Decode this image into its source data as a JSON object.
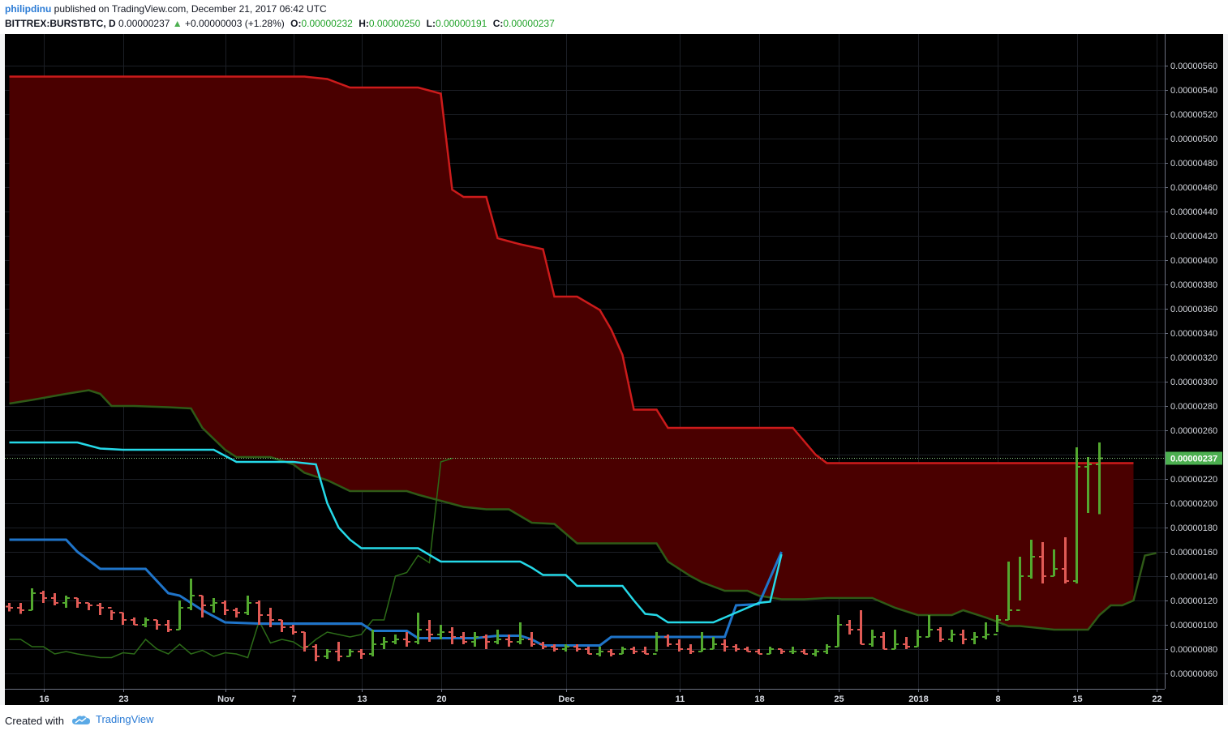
{
  "header": {
    "author": "philipdinu",
    "published": "published on TradingView.com, December 21, 2017 06:42 UTC",
    "symbol": "BITTREX:BURSTBTC, D",
    "last": "0.00000237",
    "change_arrow": "▲",
    "change": "+0.00000003 (+1.28%)",
    "o_label": "O:",
    "o_value": "0.00000232",
    "h_label": "H:",
    "h_value": "0.00000250",
    "l_label": "L:",
    "l_value": "0.00000191",
    "c_label": "C:",
    "c_value": "0.00000237"
  },
  "footer": {
    "created_with": "Created with",
    "brand": "TradingView"
  },
  "colors": {
    "background": "#000000",
    "cloud_bear": "#4a0000",
    "span_a": "#cc1b1b",
    "span_b": "#2f5a17",
    "tenkan": "#25d9e8",
    "kijun": "#1f74c9",
    "chikou": "#2c6b18",
    "bar_up": "#53a82f",
    "bar_down": "#e05a55",
    "price_label_bg": "#4caf50"
  },
  "chart_data": {
    "type": "ohlc",
    "title": "BITTREX:BURSTBTC, D",
    "indicator": "Ichimoku Cloud",
    "x_start": "2017-10-13",
    "x_end": "2017-12-21",
    "x_ticks": [
      {
        "date": "2017-10-16",
        "label": "16"
      },
      {
        "date": "2017-10-23",
        "label": "23"
      },
      {
        "date": "2017-11-01",
        "label": "Nov"
      },
      {
        "date": "2017-11-07",
        "label": "7"
      },
      {
        "date": "2017-11-13",
        "label": "13"
      },
      {
        "date": "2017-11-20",
        "label": "20"
      },
      {
        "date": "2017-12-01",
        "label": "Dec"
      },
      {
        "date": "2017-12-11",
        "label": "11"
      },
      {
        "date": "2017-12-18",
        "label": "18"
      },
      {
        "date": "2017-12-25",
        "label": "25"
      },
      {
        "date": "2018-01-01",
        "label": "2018"
      },
      {
        "date": "2018-01-08",
        "label": "8"
      },
      {
        "date": "2018-01-15",
        "label": "15"
      },
      {
        "date": "2018-01-22",
        "label": "22"
      }
    ],
    "y_ticks": [
      "0.00000060",
      "0.00000080",
      "0.00000100",
      "0.00000120",
      "0.00000140",
      "0.00000160",
      "0.00000180",
      "0.00000200",
      "0.00000220",
      "0.00000240",
      "0.00000260",
      "0.00000280",
      "0.00000300",
      "0.00000320",
      "0.00000340",
      "0.00000360",
      "0.00000380",
      "0.00000400",
      "0.00000420",
      "0.00000440",
      "0.00000460",
      "0.00000480",
      "0.00000500",
      "0.00000520",
      "0.00000540",
      "0.00000560"
    ],
    "ylim": [
      4e-07,
      5.8e-06
    ],
    "last_price": 2.37e-06,
    "last_price_label": "0.00000237",
    "ohlc": [
      [
        115,
        114,
        118,
        111
      ],
      [
        114,
        112,
        118,
        109
      ],
      [
        112,
        126,
        130,
        112
      ],
      [
        126,
        122,
        128,
        118
      ],
      [
        122,
        118,
        126,
        116
      ],
      [
        118,
        122,
        124,
        114
      ],
      [
        122,
        118,
        122,
        114
      ],
      [
        118,
        116,
        118,
        112
      ],
      [
        116,
        114,
        118,
        108
      ],
      [
        114,
        110,
        112,
        104
      ],
      [
        110,
        104,
        110,
        100
      ],
      [
        104,
        100,
        106,
        100
      ],
      [
        100,
        104,
        106,
        98
      ],
      [
        104,
        100,
        104,
        96
      ],
      [
        100,
        96,
        104,
        94
      ],
      [
        96,
        114,
        120,
        96
      ],
      [
        114,
        124,
        138,
        112
      ],
      [
        124,
        116,
        124,
        106
      ],
      [
        116,
        118,
        122,
        110
      ],
      [
        118,
        112,
        120,
        108
      ],
      [
        112,
        110,
        114,
        106
      ],
      [
        110,
        118,
        124,
        108
      ],
      [
        118,
        108,
        120,
        100
      ],
      [
        108,
        104,
        114,
        98
      ],
      [
        104,
        98,
        104,
        94
      ],
      [
        98,
        94,
        100,
        92
      ],
      [
        94,
        82,
        94,
        78
      ],
      [
        82,
        74,
        84,
        70
      ],
      [
        74,
        78,
        80,
        72
      ],
      [
        78,
        74,
        86,
        70
      ],
      [
        74,
        78,
        80,
        74
      ],
      [
        78,
        76,
        80,
        72
      ],
      [
        76,
        84,
        96,
        74
      ],
      [
        84,
        86,
        90,
        80
      ],
      [
        86,
        88,
        92,
        84
      ],
      [
        88,
        86,
        94,
        82
      ],
      [
        86,
        96,
        110,
        84
      ],
      [
        96,
        92,
        104,
        86
      ],
      [
        92,
        94,
        100,
        88
      ],
      [
        94,
        90,
        98,
        84
      ],
      [
        90,
        86,
        94,
        84
      ],
      [
        86,
        90,
        94,
        82
      ],
      [
        90,
        86,
        92,
        80
      ],
      [
        86,
        88,
        96,
        84
      ],
      [
        88,
        86,
        92,
        82
      ],
      [
        86,
        88,
        102,
        84
      ],
      [
        88,
        84,
        94,
        82
      ],
      [
        84,
        82,
        86,
        80
      ],
      [
        82,
        80,
        84,
        78
      ],
      [
        80,
        82,
        84,
        78
      ],
      [
        82,
        80,
        84,
        78
      ],
      [
        80,
        76,
        82,
        76
      ],
      [
        76,
        78,
        82,
        74
      ],
      [
        78,
        76,
        80,
        74
      ],
      [
        76,
        80,
        82,
        76
      ],
      [
        80,
        78,
        82,
        76
      ],
      [
        78,
        76,
        82,
        76
      ],
      [
        76,
        90,
        94,
        78
      ],
      [
        90,
        84,
        92,
        82
      ],
      [
        84,
        80,
        88,
        78
      ],
      [
        80,
        78,
        84,
        76
      ],
      [
        78,
        80,
        94,
        78
      ],
      [
        80,
        84,
        90,
        80
      ],
      [
        84,
        82,
        88,
        78
      ],
      [
        82,
        80,
        84,
        78
      ],
      [
        80,
        78,
        82,
        78
      ],
      [
        78,
        76,
        80,
        76
      ],
      [
        76,
        80,
        82,
        76
      ],
      [
        80,
        78,
        80,
        76
      ],
      [
        78,
        78,
        82,
        76
      ],
      [
        78,
        76,
        80,
        76
      ],
      [
        76,
        78,
        80,
        74
      ],
      [
        78,
        82,
        84,
        76
      ],
      [
        82,
        100,
        108,
        82
      ],
      [
        100,
        96,
        104,
        92
      ],
      [
        96,
        84,
        112,
        84
      ],
      [
        84,
        90,
        96,
        82
      ],
      [
        90,
        80,
        94,
        80
      ],
      [
        80,
        84,
        96,
        80
      ],
      [
        84,
        82,
        90,
        80
      ],
      [
        82,
        90,
        96,
        82
      ],
      [
        90,
        96,
        108,
        90
      ],
      [
        96,
        88,
        98,
        86
      ],
      [
        88,
        92,
        96,
        86
      ],
      [
        92,
        88,
        96,
        84
      ],
      [
        88,
        90,
        94,
        84
      ],
      [
        90,
        92,
        102,
        88
      ],
      [
        92,
        104,
        108,
        94
      ],
      [
        104,
        112,
        152,
        104
      ],
      [
        112,
        140,
        156,
        120
      ],
      [
        140,
        156,
        170,
        138
      ],
      [
        156,
        140,
        168,
        134
      ],
      [
        140,
        146,
        162,
        140
      ],
      [
        146,
        136,
        172,
        134
      ],
      [
        136,
        230,
        246,
        134
      ],
      [
        230,
        232,
        238,
        192
      ],
      [
        232,
        237,
        250,
        191
      ]
    ],
    "span_a": [
      [
        0,
        551
      ],
      [
        12,
        551
      ],
      [
        20,
        551
      ],
      [
        26,
        551
      ],
      [
        28,
        549
      ],
      [
        30,
        542
      ],
      [
        36,
        542
      ],
      [
        38,
        537
      ],
      [
        39,
        458
      ],
      [
        40,
        452
      ],
      [
        42,
        452
      ],
      [
        43,
        418
      ],
      [
        45,
        413
      ],
      [
        47,
        409
      ],
      [
        48,
        370
      ],
      [
        50,
        370
      ],
      [
        52,
        359
      ],
      [
        53,
        343
      ],
      [
        54,
        322
      ],
      [
        55,
        277
      ],
      [
        57,
        277
      ],
      [
        58,
        262
      ],
      [
        62,
        262
      ],
      [
        66,
        262
      ],
      [
        69,
        262
      ],
      [
        71,
        240
      ],
      [
        72,
        233
      ],
      [
        80,
        233
      ],
      [
        88,
        233
      ],
      [
        93,
        233
      ],
      [
        99,
        233
      ]
    ],
    "span_b": [
      [
        0,
        282
      ],
      [
        2,
        285
      ],
      [
        5,
        290
      ],
      [
        7,
        293
      ],
      [
        8,
        290
      ],
      [
        9,
        280
      ],
      [
        11,
        280
      ],
      [
        14,
        279
      ],
      [
        16,
        278
      ],
      [
        17,
        262
      ],
      [
        19,
        244
      ],
      [
        20,
        238
      ],
      [
        23,
        238
      ],
      [
        25,
        232
      ],
      [
        26,
        225
      ],
      [
        28,
        219
      ],
      [
        30,
        210
      ],
      [
        35,
        210
      ],
      [
        36,
        207
      ],
      [
        38,
        202
      ],
      [
        40,
        197
      ],
      [
        42,
        195
      ],
      [
        44,
        195
      ],
      [
        46,
        184
      ],
      [
        48,
        183
      ],
      [
        50,
        167
      ],
      [
        55,
        167
      ],
      [
        57,
        167
      ],
      [
        58,
        152
      ],
      [
        60,
        140
      ],
      [
        61,
        135
      ],
      [
        63,
        128
      ],
      [
        65,
        128
      ],
      [
        66,
        124
      ],
      [
        68,
        121
      ],
      [
        70,
        121
      ],
      [
        72,
        122
      ],
      [
        76,
        122
      ],
      [
        78,
        114
      ],
      [
        80,
        108
      ],
      [
        83,
        108
      ],
      [
        84,
        112
      ],
      [
        86,
        106
      ],
      [
        88,
        99
      ],
      [
        89,
        99
      ],
      [
        90,
        98
      ],
      [
        92,
        96
      ],
      [
        94,
        96
      ],
      [
        95,
        96
      ],
      [
        96,
        108
      ],
      [
        97,
        116
      ],
      [
        98,
        116
      ],
      [
        99,
        120
      ],
      [
        100,
        157
      ],
      [
        101,
        159
      ]
    ],
    "tenkan": [
      [
        0,
        250
      ],
      [
        6,
        250
      ],
      [
        8,
        245
      ],
      [
        10,
        244
      ],
      [
        14,
        244
      ],
      [
        18,
        244
      ],
      [
        20,
        234
      ],
      [
        25,
        234
      ],
      [
        27,
        232
      ],
      [
        28,
        200
      ],
      [
        29,
        180
      ],
      [
        30,
        170
      ],
      [
        31,
        163
      ],
      [
        36,
        163
      ],
      [
        38,
        152
      ],
      [
        39,
        152
      ],
      [
        45,
        152
      ],
      [
        46,
        147
      ],
      [
        47,
        141
      ],
      [
        49,
        141
      ],
      [
        50,
        132
      ],
      [
        54,
        132
      ],
      [
        55,
        120
      ],
      [
        56,
        109
      ],
      [
        57,
        108
      ],
      [
        58,
        102
      ],
      [
        59,
        102
      ],
      [
        62,
        102
      ],
      [
        64,
        110
      ],
      [
        66,
        118
      ],
      [
        67,
        119
      ],
      [
        68,
        158
      ]
    ],
    "kijun": [
      [
        0,
        170
      ],
      [
        5,
        170
      ],
      [
        6,
        160
      ],
      [
        8,
        146
      ],
      [
        12,
        146
      ],
      [
        14,
        126
      ],
      [
        15,
        124
      ],
      [
        17,
        112
      ],
      [
        19,
        102
      ],
      [
        22,
        101
      ],
      [
        31,
        101
      ],
      [
        32,
        95
      ],
      [
        35,
        95
      ],
      [
        36,
        89
      ],
      [
        41,
        89
      ],
      [
        43,
        91
      ],
      [
        45,
        91
      ],
      [
        46,
        88
      ],
      [
        47,
        83
      ],
      [
        52,
        83
      ],
      [
        53,
        90
      ],
      [
        58,
        90
      ],
      [
        63,
        90
      ],
      [
        64,
        116
      ],
      [
        66,
        117
      ],
      [
        68,
        160
      ]
    ],
    "chikou": [
      [
        0,
        88
      ],
      [
        1,
        88
      ],
      [
        2,
        82
      ],
      [
        3,
        82
      ],
      [
        4,
        76
      ],
      [
        5,
        78
      ],
      [
        6,
        76
      ],
      [
        8,
        73
      ],
      [
        9,
        73
      ],
      [
        10,
        77
      ],
      [
        11,
        76
      ],
      [
        12,
        88
      ],
      [
        13,
        80
      ],
      [
        14,
        76
      ],
      [
        15,
        84
      ],
      [
        16,
        76
      ],
      [
        17,
        79
      ],
      [
        18,
        74
      ],
      [
        19,
        77
      ],
      [
        20,
        76
      ],
      [
        21,
        73
      ],
      [
        22,
        103
      ],
      [
        23,
        85
      ],
      [
        24,
        88
      ],
      [
        25,
        86
      ],
      [
        26,
        80
      ],
      [
        27,
        88
      ],
      [
        28,
        94
      ],
      [
        29,
        92
      ],
      [
        30,
        90
      ],
      [
        31,
        92
      ],
      [
        32,
        104
      ],
      [
        33,
        104
      ],
      [
        34,
        140
      ],
      [
        35,
        143
      ],
      [
        36,
        157
      ],
      [
        37,
        151
      ],
      [
        38,
        234
      ],
      [
        39,
        237
      ]
    ]
  }
}
